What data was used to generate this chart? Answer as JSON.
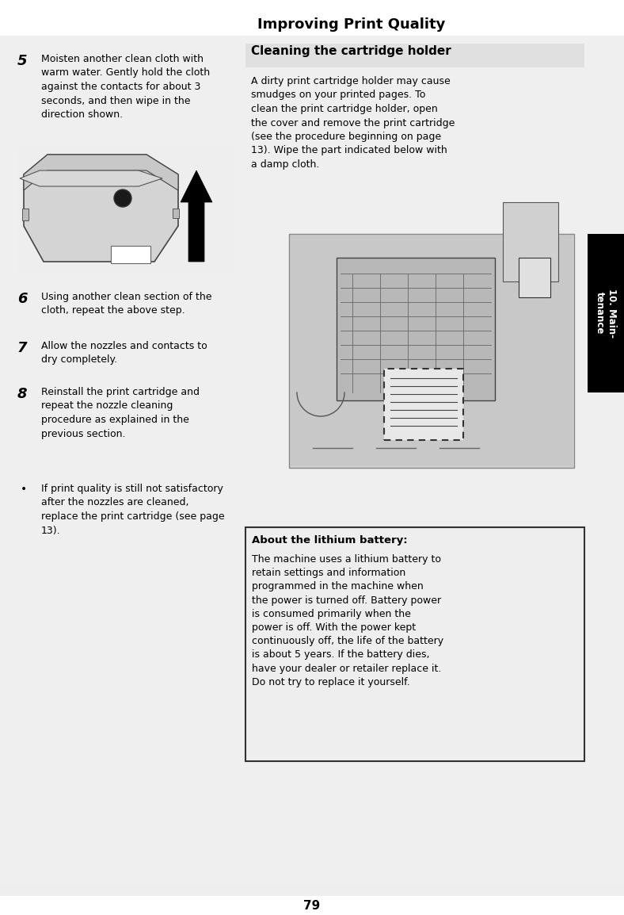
{
  "title": "Improving Print Quality",
  "page_number": "79",
  "tab_label": "10. Main-\ntenance",
  "tab_bg": "#000000",
  "tab_text_color": "#ffffff",
  "bg_color": "#ffffff",
  "page_bg": "#e8e8e8",
  "left_col_bg": "#e8e8e8",
  "right_col_bg": "#e8e8e8",
  "left_column": {
    "steps": [
      {
        "number": "5",
        "text": "Moisten another clean cloth with\nwarm water. Gently hold the cloth\nagainst the contacts for about 3\nseconds, and then wipe in the\ndirection shown."
      },
      {
        "number": "6",
        "text": "Using another clean section of the\ncloth, repeat the above step."
      },
      {
        "number": "7",
        "text": "Allow the nozzles and contacts to\ndry completely."
      },
      {
        "number": "8",
        "text": "Reinstall the print cartridge and\nrepeat the nozzle cleaning\nprocedure as explained in the\nprevious section."
      },
      {
        "number": "•",
        "text": "If print quality is still not satisfactory\nafter the nozzles are cleaned,\nreplace the print cartridge (see page\n13)."
      }
    ]
  },
  "right_column": {
    "section_title": "Cleaning the cartridge holder",
    "intro_text": "A dirty print cartridge holder may cause\nsmudges on your printed pages. To\nclean the print cartridge holder, open\nthe cover and remove the print cartridge\n(see the procedure beginning on page\n13). Wipe the part indicated below with\na damp cloth.",
    "battery_title": "About the lithium battery:",
    "battery_text": "The machine uses a lithium battery to\nretain settings and information\nprogrammed in the machine when\nthe power is turned off. Battery power\nis consumed primarily when the\npower is off. With the power kept\ncontinuously off, the life of the battery\nis about 5 years. If the battery dies,\nhave your dealer or retailer replace it.\nDo not try to replace it yourself."
  }
}
